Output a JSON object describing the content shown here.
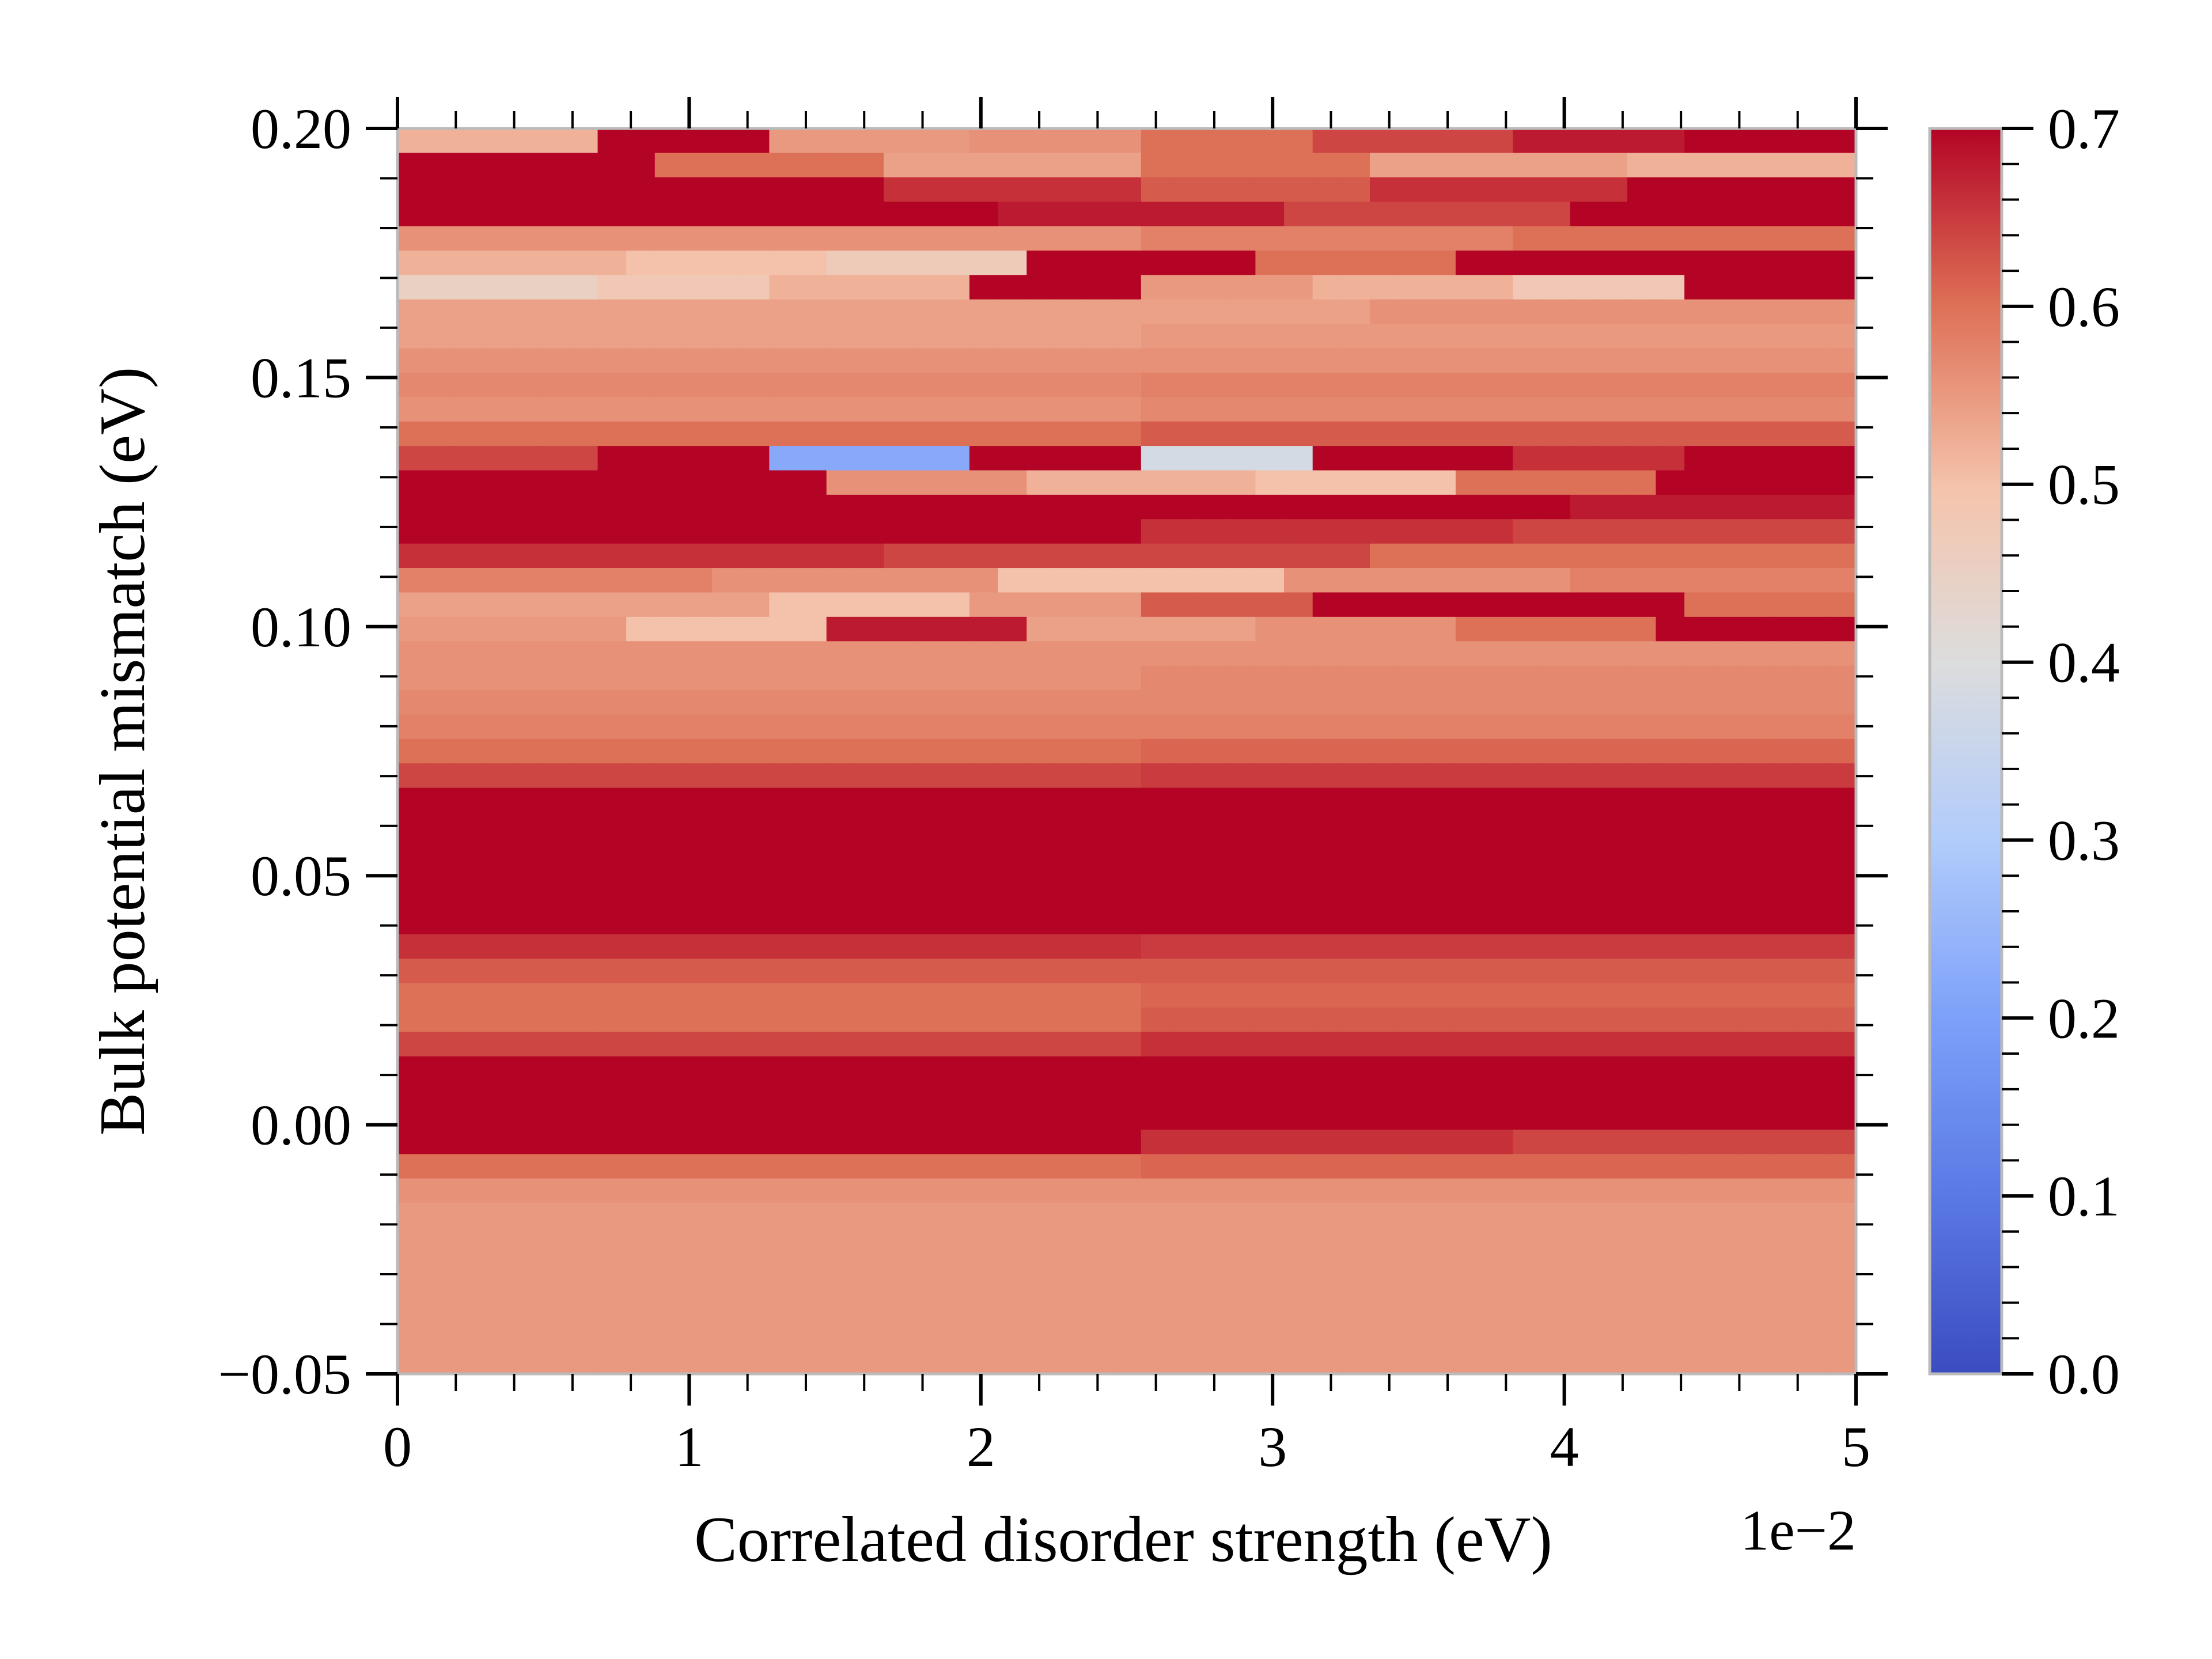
{
  "chart_data": {
    "type": "heatmap",
    "xlabel": "Correlated disorder strength (eV)",
    "ylabel": "Bulk potential mismatch (eV)",
    "x_offset_label": "1e−2",
    "xlim": [
      0,
      0.05
    ],
    "ylim": [
      -0.05,
      0.2
    ],
    "x_ticks": [
      0,
      0.01,
      0.02,
      0.03,
      0.04,
      0.05
    ],
    "x_tick_labels": [
      "0",
      "1",
      "2",
      "3",
      "4",
      "5"
    ],
    "y_ticks": [
      -0.05,
      0.0,
      0.05,
      0.1,
      0.15,
      0.2
    ],
    "y_tick_labels": [
      "−0.05",
      "0.00",
      "0.05",
      "0.10",
      "0.15",
      "0.20"
    ],
    "colorbar": {
      "colormap": "coolwarm",
      "range": [
        0.0,
        0.7
      ],
      "ticks": [
        0.0,
        0.1,
        0.2,
        0.3,
        0.4,
        0.5,
        0.6,
        0.7
      ],
      "tick_labels": [
        "0.0",
        "0.1",
        "0.2",
        "0.3",
        "0.4",
        "0.5",
        "0.6",
        "0.7"
      ]
    },
    "grid": false,
    "columns": 51,
    "rows": 51,
    "row_bands_top_to_bottom": [
      {
        "values": [
          0.52,
          0.7,
          0.55,
          0.56,
          0.6,
          0.64,
          0.68,
          0.7
        ]
      },
      {
        "values": [
          0.7,
          0.6,
          0.54,
          0.6,
          0.54,
          0.52
        ]
      },
      {
        "values": [
          0.7,
          0.7,
          0.66,
          0.62,
          0.66,
          0.7
        ]
      },
      {
        "values": [
          0.7,
          0.7,
          0.68,
          0.64,
          0.7
        ]
      },
      {
        "values": [
          0.56,
          0.56,
          0.58,
          0.6
        ]
      },
      {
        "values": [
          0.52,
          0.5,
          0.47,
          0.7,
          0.6,
          0.7,
          0.7
        ]
      },
      {
        "values": [
          0.45,
          0.48,
          0.52,
          0.7,
          0.55,
          0.52,
          0.48,
          0.7
        ]
      },
      {
        "values": [
          0.54,
          0.54,
          0.56
        ]
      },
      {
        "values": [
          0.54,
          0.55
        ]
      },
      {
        "values": [
          0.56,
          0.56
        ]
      },
      {
        "values": [
          0.57,
          0.58
        ]
      },
      {
        "values": [
          0.56,
          0.57
        ]
      },
      {
        "values": [
          0.6,
          0.62
        ]
      },
      {
        "values": [
          0.64,
          0.7,
          0.22,
          0.7,
          0.38,
          0.7,
          0.66,
          0.7
        ]
      },
      {
        "values": [
          0.7,
          0.7,
          0.56,
          0.52,
          0.5,
          0.6,
          0.7
        ]
      },
      {
        "values": [
          0.7,
          0.7,
          0.7,
          0.7,
          0.68
        ]
      },
      {
        "values": [
          0.7,
          0.7,
          0.66,
          0.64
        ]
      },
      {
        "values": [
          0.66,
          0.64,
          0.6
        ]
      },
      {
        "values": [
          0.58,
          0.56,
          0.5,
          0.56,
          0.58
        ]
      },
      {
        "values": [
          0.54,
          0.54,
          0.5,
          0.55,
          0.62,
          0.7,
          0.7,
          0.6
        ]
      },
      {
        "values": [
          0.55,
          0.5,
          0.68,
          0.54,
          0.56,
          0.6,
          0.7
        ]
      },
      {
        "values": [
          0.56,
          0.56
        ]
      },
      {
        "values": [
          0.56,
          0.57
        ]
      },
      {
        "values": [
          0.57,
          0.57
        ]
      },
      {
        "values": [
          0.58,
          0.58
        ]
      },
      {
        "values": [
          0.6,
          0.61
        ]
      },
      {
        "values": [
          0.64,
          0.65
        ]
      },
      {
        "values": [
          0.7,
          0.7
        ]
      },
      {
        "values": [
          0.7,
          0.7
        ]
      },
      {
        "values": [
          0.7,
          0.7
        ]
      },
      {
        "values": [
          0.7,
          0.7
        ]
      },
      {
        "values": [
          0.7,
          0.7
        ]
      },
      {
        "values": [
          0.7,
          0.7
        ]
      },
      {
        "values": [
          0.66,
          0.65
        ]
      },
      {
        "values": [
          0.62,
          0.62
        ]
      },
      {
        "values": [
          0.6,
          0.61
        ]
      },
      {
        "values": [
          0.6,
          0.62
        ]
      },
      {
        "values": [
          0.64,
          0.66
        ]
      },
      {
        "values": [
          0.7,
          0.7
        ]
      },
      {
        "values": [
          0.7,
          0.7
        ]
      },
      {
        "values": [
          0.7,
          0.7
        ]
      },
      {
        "values": [
          0.7,
          0.7,
          0.66,
          0.64
        ]
      },
      {
        "values": [
          0.6,
          0.61
        ]
      },
      {
        "values": [
          0.56,
          0.56
        ]
      },
      {
        "values": [
          0.55,
          0.55
        ]
      },
      {
        "values": [
          0.55,
          0.55
        ]
      },
      {
        "values": [
          0.55,
          0.55
        ]
      },
      {
        "values": [
          0.55,
          0.55
        ]
      },
      {
        "values": [
          0.55,
          0.55
        ]
      },
      {
        "values": [
          0.55,
          0.55
        ]
      },
      {
        "values": [
          0.55,
          0.55
        ]
      }
    ]
  }
}
